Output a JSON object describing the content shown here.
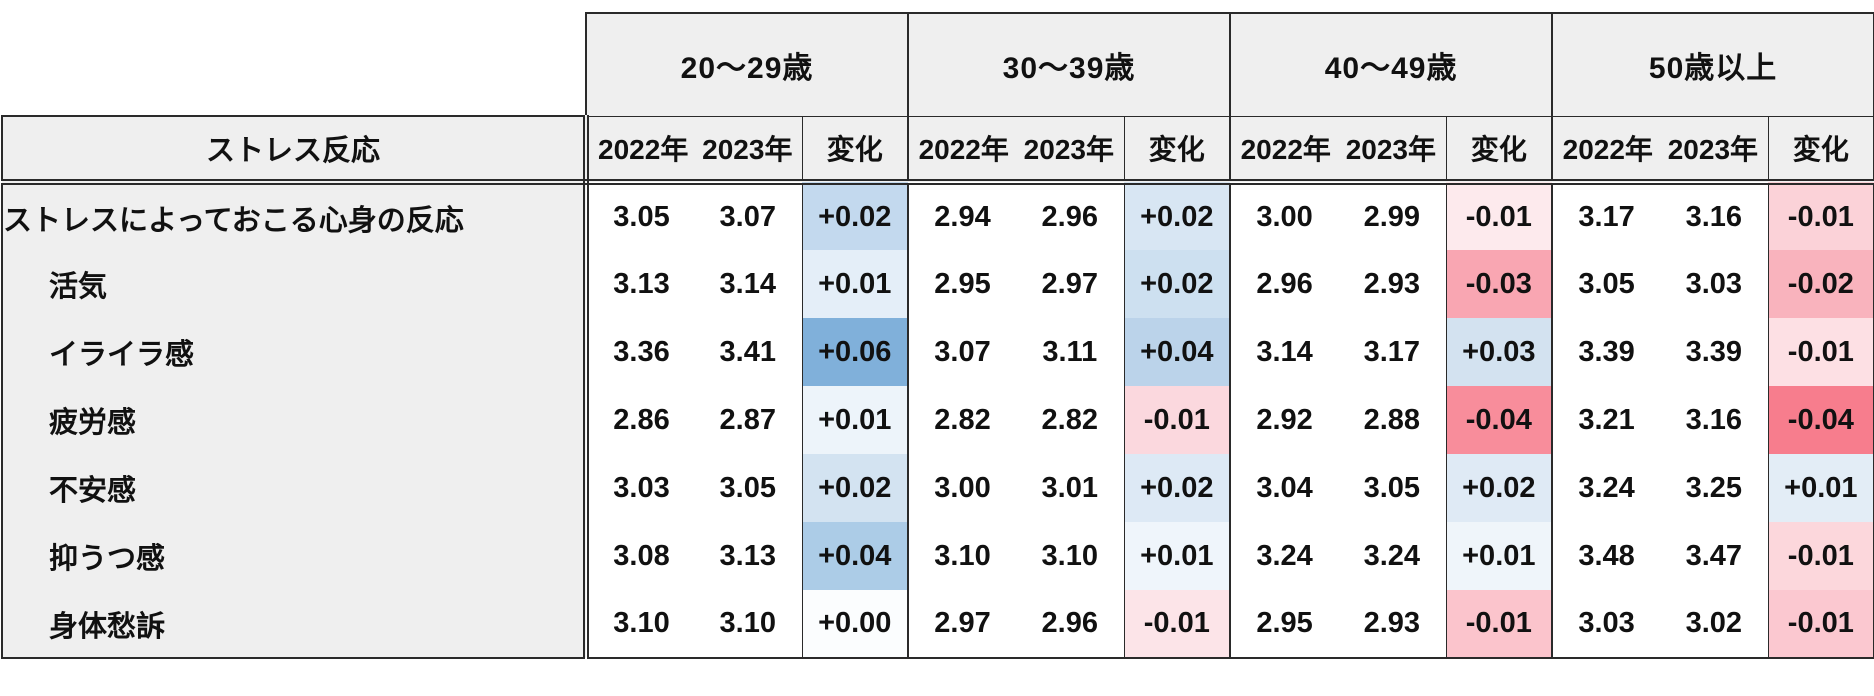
{
  "chart_data": {
    "type": "table",
    "corner_header": "ストレス反応",
    "age_groups": [
      {
        "label": "20〜29歳"
      },
      {
        "label": "30〜39歳"
      },
      {
        "label": "40〜49歳"
      },
      {
        "label": "50歳以上"
      }
    ],
    "col_headers": {
      "y2022": "2022年",
      "y2023": "2023年",
      "change": "変化"
    },
    "change_palette": {
      "increase": "blue shades",
      "decrease": "red shades"
    },
    "rows": [
      {
        "label": "ストレスによっておこる心身の反応",
        "cells": [
          {
            "y2022": "3.05",
            "y2023": "3.07",
            "change": "+0.02",
            "change_color": "#c3d9ee"
          },
          {
            "y2022": "2.94",
            "y2023": "2.96",
            "change": "+0.02",
            "change_color": "#d8e6f3"
          },
          {
            "y2022": "3.00",
            "y2023": "2.99",
            "change": "-0.01",
            "change_color": "#fdeaed"
          },
          {
            "y2022": "3.17",
            "y2023": "3.16",
            "change": "-0.01",
            "change_color": "#fbd2d8"
          }
        ]
      },
      {
        "label": "活気",
        "cells": [
          {
            "y2022": "3.13",
            "y2023": "3.14",
            "change": "+0.01",
            "change_color": "#e4eef8"
          },
          {
            "y2022": "2.95",
            "y2023": "2.97",
            "change": "+0.02",
            "change_color": "#cde0f0"
          },
          {
            "y2022": "2.96",
            "y2023": "2.93",
            "change": "-0.03",
            "change_color": "#f9a6b2"
          },
          {
            "y2022": "3.05",
            "y2023": "3.03",
            "change": "-0.02",
            "change_color": "#f9b3bd"
          }
        ]
      },
      {
        "label": "イライラ感",
        "cells": [
          {
            "y2022": "3.36",
            "y2023": "3.41",
            "change": "+0.06",
            "change_color": "#80b0da"
          },
          {
            "y2022": "3.07",
            "y2023": "3.11",
            "change": "+0.04",
            "change_color": "#bbd3ea"
          },
          {
            "y2022": "3.14",
            "y2023": "3.17",
            "change": "+0.03",
            "change_color": "#d3e2f0"
          },
          {
            "y2022": "3.39",
            "y2023": "3.39",
            "change": "-0.01",
            "change_color": "#fde0e4"
          }
        ]
      },
      {
        "label": "疲労感",
        "cells": [
          {
            "y2022": "2.86",
            "y2023": "2.87",
            "change": "+0.01",
            "change_color": "#edf4fa"
          },
          {
            "y2022": "2.82",
            "y2023": "2.82",
            "change": "-0.01",
            "change_color": "#fbd8de"
          },
          {
            "y2022": "2.92",
            "y2023": "2.88",
            "change": "-0.04",
            "change_color": "#f88d9b"
          },
          {
            "y2022": "3.21",
            "y2023": "3.16",
            "change": "-0.04",
            "change_color": "#f77d8d"
          }
        ]
      },
      {
        "label": "不安感",
        "cells": [
          {
            "y2022": "3.03",
            "y2023": "3.05",
            "change": "+0.02",
            "change_color": "#d3e3f1"
          },
          {
            "y2022": "3.00",
            "y2023": "3.01",
            "change": "+0.02",
            "change_color": "#dde9f5"
          },
          {
            "y2022": "3.04",
            "y2023": "3.05",
            "change": "+0.02",
            "change_color": "#dfeaf5"
          },
          {
            "y2022": "3.24",
            "y2023": "3.25",
            "change": "+0.01",
            "change_color": "#e3edf6"
          }
        ]
      },
      {
        "label": "抑うつ感",
        "cells": [
          {
            "y2022": "3.08",
            "y2023": "3.13",
            "change": "+0.04",
            "change_color": "#accce7"
          },
          {
            "y2022": "3.10",
            "y2023": "3.10",
            "change": "+0.01",
            "change_color": "#eff5fb"
          },
          {
            "y2022": "3.24",
            "y2023": "3.24",
            "change": "+0.01",
            "change_color": "#eff5fa"
          },
          {
            "y2022": "3.48",
            "y2023": "3.47",
            "change": "-0.01",
            "change_color": "#fcd7dc"
          }
        ]
      },
      {
        "label": "身体愁訴",
        "cells": [
          {
            "y2022": "3.10",
            "y2023": "3.10",
            "change": "+0.00",
            "change_color": "#fbfdfe"
          },
          {
            "y2022": "2.97",
            "y2023": "2.96",
            "change": "-0.01",
            "change_color": "#fce4e8"
          },
          {
            "y2022": "2.95",
            "y2023": "2.93",
            "change": "-0.01",
            "change_color": "#fbc4cc"
          },
          {
            "y2022": "3.03",
            "y2023": "3.02",
            "change": "-0.01",
            "change_color": "#fbc8d0"
          }
        ]
      }
    ]
  }
}
